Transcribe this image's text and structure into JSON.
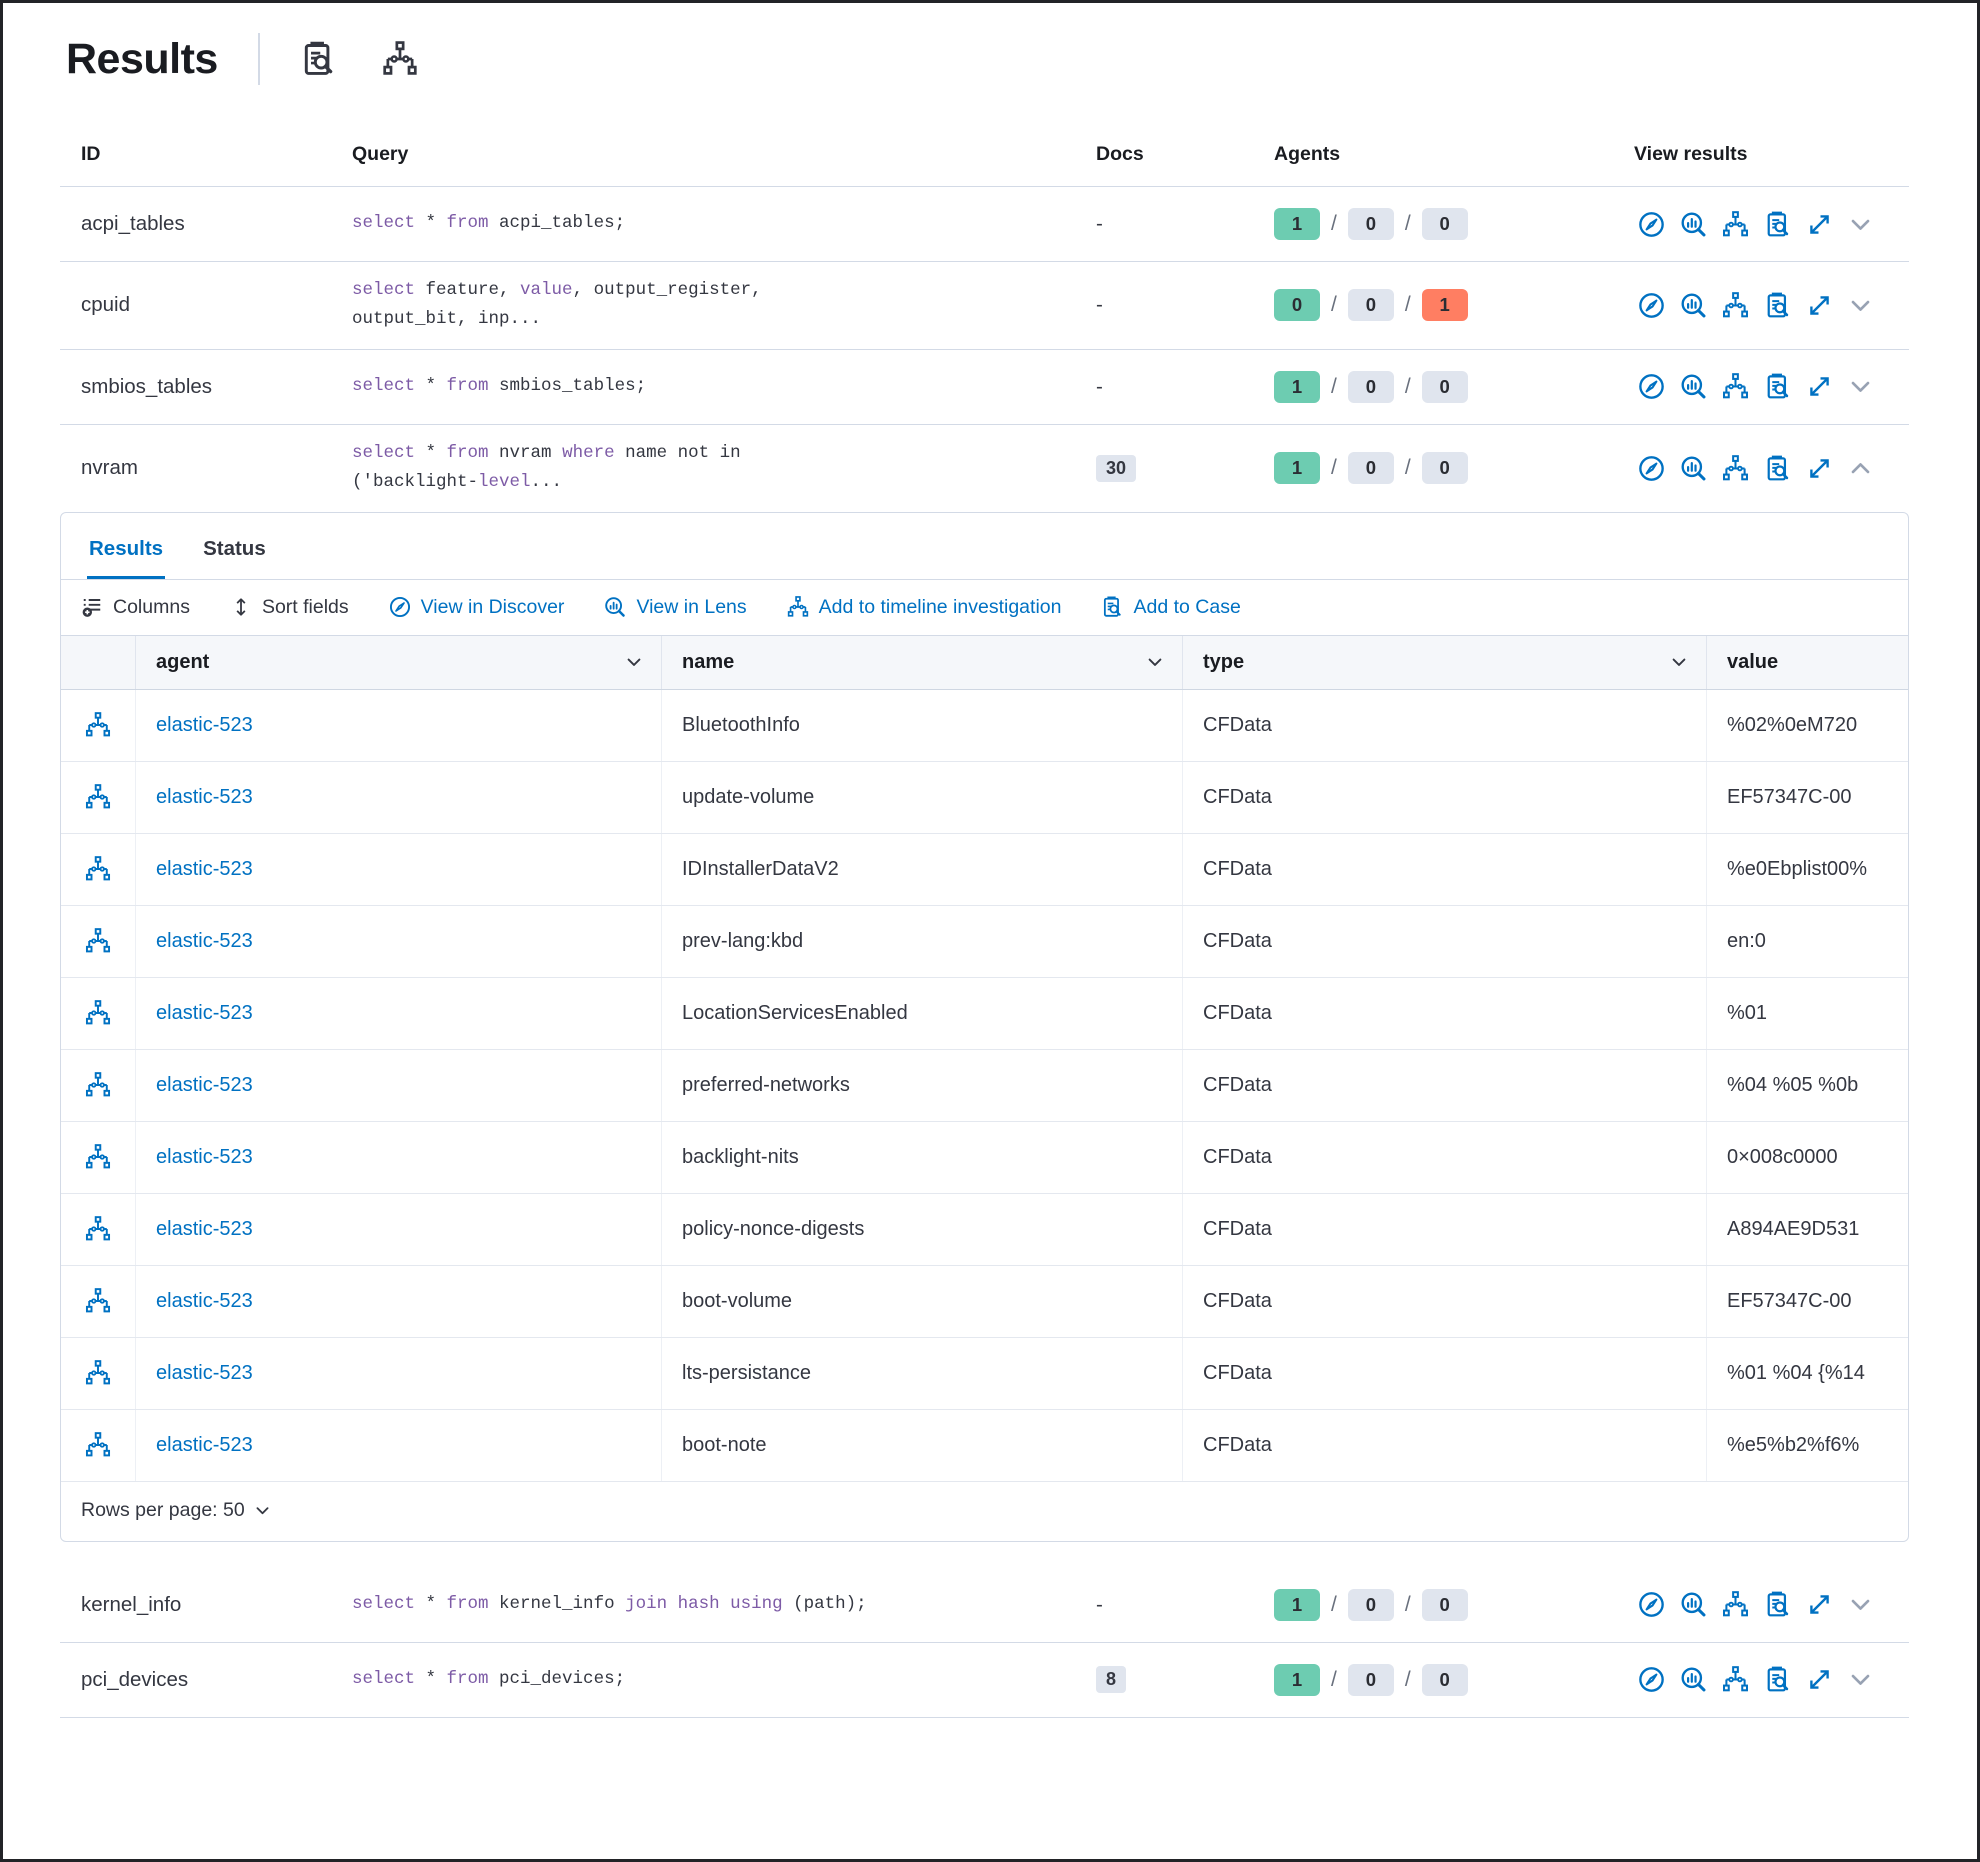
{
  "colors": {
    "link": "#0071c2",
    "keyword": "#7d5ba6",
    "badge_success_bg": "#6dccb1",
    "badge_neutral_bg": "#e0e5ee",
    "badge_danger_bg": "#ff7e62"
  },
  "header": {
    "title": "Results",
    "icons": [
      {
        "symbol": "clipboard",
        "name": "inspect-clipboard-icon"
      },
      {
        "symbol": "tree",
        "name": "node-tree-icon"
      }
    ]
  },
  "results_table": {
    "columns": [
      "ID",
      "Query",
      "Docs",
      "Agents",
      "View results"
    ],
    "view_actions": [
      {
        "symbol": "discover",
        "name": "view-in-discover-icon"
      },
      {
        "symbol": "lens",
        "name": "view-in-lens-icon"
      },
      {
        "symbol": "tree",
        "name": "add-to-timeline-icon"
      },
      {
        "symbol": "clipboard",
        "name": "add-to-case-icon"
      },
      {
        "symbol": "expand",
        "name": "expand-results-icon"
      }
    ],
    "rows_before": [
      {
        "id": "acpi_tables",
        "query": [
          {
            "t": "select",
            "k": true
          },
          {
            "t": " * "
          },
          {
            "t": "from",
            "k": true
          },
          {
            "t": " acpi_tables;"
          }
        ],
        "docs": "-",
        "docs_is_badge": false,
        "agents": [
          {
            "n": "1",
            "c": "success"
          },
          {
            "n": "0",
            "c": "neutral"
          },
          {
            "n": "0",
            "c": "neutral"
          }
        ],
        "expanded": false
      },
      {
        "id": "cpuid",
        "query": [
          {
            "t": "select",
            "k": true
          },
          {
            "t": " feature, "
          },
          {
            "t": "value",
            "k": true
          },
          {
            "t": ", output_register,\noutput_bit, inp..."
          }
        ],
        "docs": "-",
        "docs_is_badge": false,
        "agents": [
          {
            "n": "0",
            "c": "success"
          },
          {
            "n": "0",
            "c": "neutral"
          },
          {
            "n": "1",
            "c": "danger"
          }
        ],
        "expanded": false
      },
      {
        "id": "smbios_tables",
        "query": [
          {
            "t": "select",
            "k": true
          },
          {
            "t": " * "
          },
          {
            "t": "from",
            "k": true
          },
          {
            "t": " smbios_tables;"
          }
        ],
        "docs": "-",
        "docs_is_badge": false,
        "agents": [
          {
            "n": "1",
            "c": "success"
          },
          {
            "n": "0",
            "c": "neutral"
          },
          {
            "n": "0",
            "c": "neutral"
          }
        ],
        "expanded": false
      },
      {
        "id": "nvram",
        "query": [
          {
            "t": "select",
            "k": true
          },
          {
            "t": " * "
          },
          {
            "t": "from",
            "k": true
          },
          {
            "t": " nvram "
          },
          {
            "t": "where",
            "k": true
          },
          {
            "t": " name not in\n('backlight-"
          },
          {
            "t": "level",
            "k": true
          },
          {
            "t": "..."
          }
        ],
        "docs": "30",
        "docs_is_badge": true,
        "agents": [
          {
            "n": "1",
            "c": "success"
          },
          {
            "n": "0",
            "c": "neutral"
          },
          {
            "n": "0",
            "c": "neutral"
          }
        ],
        "expanded": true
      }
    ],
    "rows_after": [
      {
        "id": "kernel_info",
        "query": [
          {
            "t": "select",
            "k": true
          },
          {
            "t": " * "
          },
          {
            "t": "from",
            "k": true
          },
          {
            "t": " kernel_info "
          },
          {
            "t": "join hash using",
            "k": true
          },
          {
            "t": " (path);"
          }
        ],
        "docs": "-",
        "docs_is_badge": false,
        "agents": [
          {
            "n": "1",
            "c": "success"
          },
          {
            "n": "0",
            "c": "neutral"
          },
          {
            "n": "0",
            "c": "neutral"
          }
        ],
        "expanded": false
      },
      {
        "id": "pci_devices",
        "query": [
          {
            "t": "select",
            "k": true
          },
          {
            "t": " * "
          },
          {
            "t": "from",
            "k": true
          },
          {
            "t": " pci_devices;"
          }
        ],
        "docs": "8",
        "docs_is_badge": true,
        "agents": [
          {
            "n": "1",
            "c": "success"
          },
          {
            "n": "0",
            "c": "neutral"
          },
          {
            "n": "0",
            "c": "neutral"
          }
        ],
        "expanded": false
      }
    ]
  },
  "panel": {
    "tabs": [
      {
        "label": "Results",
        "active": true
      },
      {
        "label": "Status",
        "active": false
      }
    ],
    "toolbar": [
      {
        "label": "Columns",
        "symbol": "columns",
        "style": "dark",
        "name": "columns-button"
      },
      {
        "label": "Sort fields",
        "symbol": "sort",
        "style": "dark",
        "name": "sort-fields-button"
      },
      {
        "label": "View in Discover",
        "symbol": "discover",
        "style": "link",
        "name": "view-in-discover-button"
      },
      {
        "label": "View in Lens",
        "symbol": "lens",
        "style": "link",
        "name": "view-in-lens-button"
      },
      {
        "label": "Add to timeline investigation",
        "symbol": "tree",
        "style": "link",
        "name": "add-to-timeline-button"
      },
      {
        "label": "Add to Case",
        "symbol": "clipboard",
        "style": "link",
        "name": "add-to-case-button"
      }
    ],
    "grid": {
      "columns": [
        {
          "label": "agent",
          "sortable": true
        },
        {
          "label": "name",
          "sortable": true
        },
        {
          "label": "type",
          "sortable": true
        },
        {
          "label": "value",
          "sortable": false
        }
      ],
      "rows": [
        {
          "agent": "elastic-523",
          "name": "BluetoothInfo",
          "type": "CFData",
          "value": "%02%0eM720"
        },
        {
          "agent": "elastic-523",
          "name": "update-volume",
          "type": "CFData",
          "value": "EF57347C-00"
        },
        {
          "agent": "elastic-523",
          "name": "IDInstallerDataV2",
          "type": "CFData",
          "value": "%e0Ebplist00%"
        },
        {
          "agent": "elastic-523",
          "name": "prev-lang:kbd",
          "type": "CFData",
          "value": "en:0"
        },
        {
          "agent": "elastic-523",
          "name": "LocationServicesEnabled",
          "type": "CFData",
          "value": "%01"
        },
        {
          "agent": "elastic-523",
          "name": "preferred-networks",
          "type": "CFData",
          "value": "%04 %05 %0b"
        },
        {
          "agent": "elastic-523",
          "name": "backlight-nits",
          "type": "CFData",
          "value": "0×008c0000"
        },
        {
          "agent": "elastic-523",
          "name": "policy-nonce-digests",
          "type": "CFData",
          "value": "A894AE9D531"
        },
        {
          "agent": "elastic-523",
          "name": "boot-volume",
          "type": "CFData",
          "value": "EF57347C-00"
        },
        {
          "agent": "elastic-523",
          "name": "lts-persistance",
          "type": "CFData",
          "value": "%01 %04 {%14"
        },
        {
          "agent": "elastic-523",
          "name": "boot-note",
          "type": "CFData",
          "value": "%e5%b2%f6%"
        }
      ]
    },
    "footer": {
      "rows_per_page_label": "Rows per page: 50"
    }
  }
}
